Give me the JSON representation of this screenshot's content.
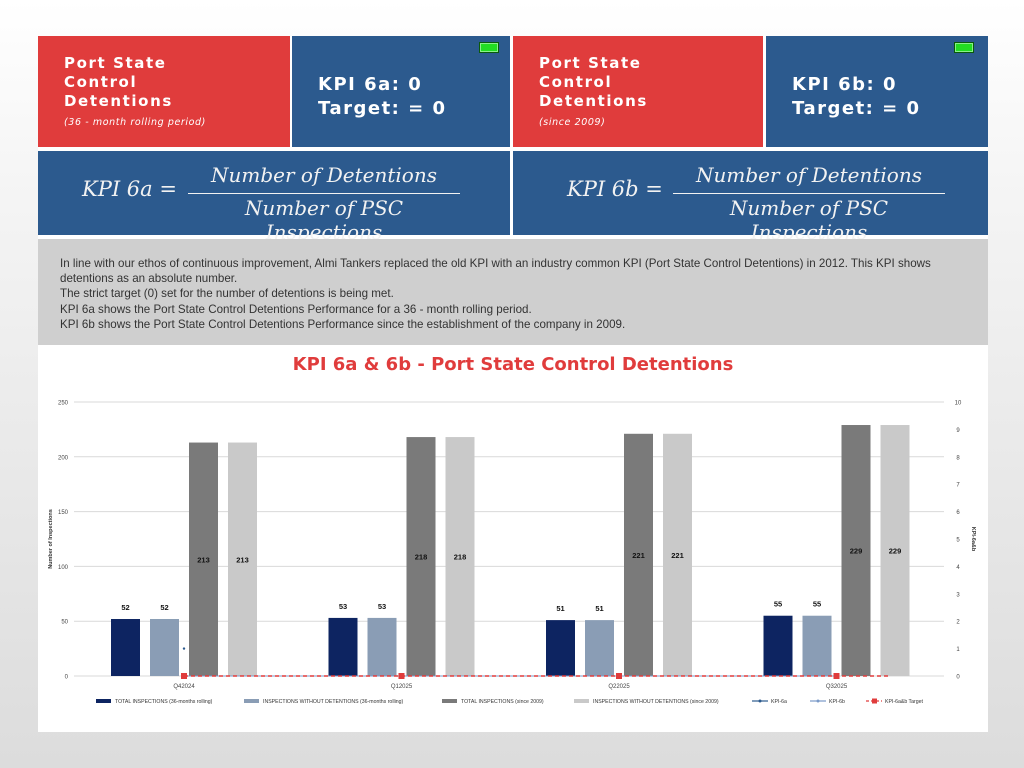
{
  "tiles": {
    "left_title": "Port State Control Detentions",
    "left_sub": "(36 - month rolling period)",
    "left_kpi": "KPI 6a: 0",
    "left_target": "Target: = 0",
    "right_title": "Port State Control Detentions",
    "right_sub": "(since 2009)",
    "right_kpi": "KPI 6b: 0",
    "right_target": "Target: = 0"
  },
  "formula": {
    "a_lhs": "KPI  6a  =",
    "b_lhs": "KPI  6b  =",
    "numerator": "Number of Detentions",
    "denominator": "Number of PSC Inspections"
  },
  "description": {
    "p1": "In line with our ethos of continuous improvement, Almi Tankers replaced the old KPI with an industry common KPI (Port State Control Detentions) in 2012. This KPI shows detentions as an absolute number.",
    "p2": "The strict target (0) set for the number of detentions is being met.",
    "p3": "KPI 6a shows the Port State Control Detentions Performance for a 36 - month rolling period.",
    "p4": "KPI 6b shows the Port State Control Detentions Performance since the establishment of the company in 2009."
  },
  "colors": {
    "red": "#e03c3c",
    "blue": "#2c5a8e",
    "navy": "#0d2461",
    "steel": "#8a9db5",
    "dark_gray": "#7a7a7a",
    "light_gray": "#c9c9c9",
    "led": "#22dd22"
  },
  "chart_data": {
    "type": "bar",
    "title": "KPI 6a & 6b - Port State Control Detentions",
    "ylabel": "Number of Inspections",
    "y2label": "KPI-6a&b",
    "ylim": [
      0,
      250
    ],
    "y2lim": [
      0,
      10
    ],
    "yticks": [
      0,
      50,
      100,
      150,
      200,
      250
    ],
    "y2ticks": [
      0,
      1,
      2,
      3,
      4,
      5,
      6,
      7,
      8,
      9,
      10
    ],
    "categories": [
      "Q42024",
      "Q12025",
      "Q22025",
      "Q32025"
    ],
    "series": [
      {
        "name": "TOTAL INSPECTIONS (36-months rolling)",
        "kind": "bar",
        "values": [
          52,
          53,
          51,
          55
        ]
      },
      {
        "name": "INSPECTIONS WITHOUT DETENTIONS (36-months rolling)",
        "kind": "bar",
        "values": [
          52,
          53,
          51,
          55
        ]
      },
      {
        "name": "TOTAL  INSPECTIONS (since 2009)",
        "kind": "bar",
        "values": [
          213,
          218,
          221,
          229
        ]
      },
      {
        "name": "INSPECTIONS WITHOUT DETENTIONS  (since 2009)",
        "kind": "bar",
        "values": [
          213,
          218,
          221,
          229
        ]
      },
      {
        "name": "KPI-6a",
        "kind": "line",
        "axis": "y2",
        "values": [
          0,
          0,
          0,
          0
        ]
      },
      {
        "name": "KPI-6b",
        "kind": "line",
        "axis": "y2",
        "values": [
          0,
          0,
          0,
          0
        ]
      },
      {
        "name": "KPI-6a&b Target",
        "kind": "target",
        "axis": "y2",
        "values": [
          0,
          0,
          0,
          0
        ]
      }
    ]
  }
}
